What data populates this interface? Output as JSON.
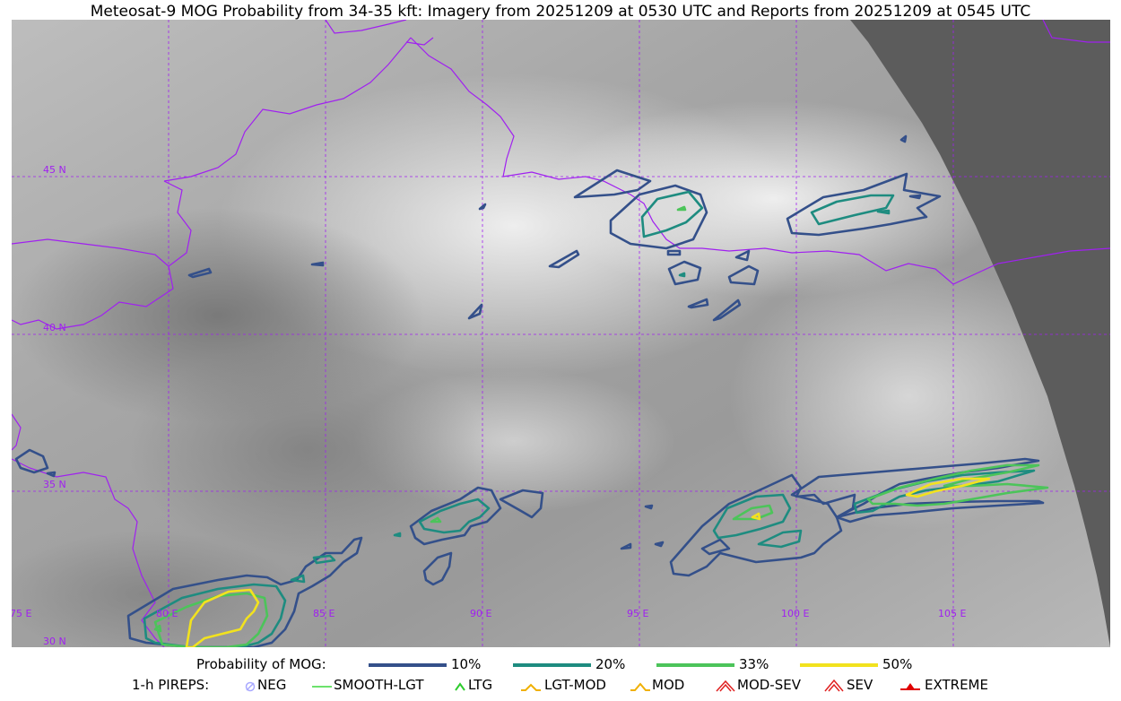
{
  "title": "Meteosat-9 MOG Probability from 34-35 kft: Imagery from 20251209 at 0530 UTC and Reports from 20251209 at 0545 UTC",
  "map": {
    "lat_labels": [
      "45 N",
      "40 N",
      "35 N",
      "30 N"
    ],
    "lon_labels": [
      "75 E",
      "80 E",
      "85 E",
      "90 E",
      "95 E",
      "100 E",
      "105 E"
    ],
    "grid_color": "#a020f0",
    "border_color": "#a020f0",
    "no_data_color": "#5c5c5c"
  },
  "legend_mog": {
    "label": "Probability of MOG:",
    "items": [
      {
        "label": "10%",
        "color": "#34508a"
      },
      {
        "label": "20%",
        "color": "#1e8c80"
      },
      {
        "label": "33%",
        "color": "#4cc45a"
      },
      {
        "label": "50%",
        "color": "#f2e21e"
      }
    ]
  },
  "legend_pirep": {
    "label": "1-h PIREPS:",
    "items": [
      {
        "label": "NEG",
        "icon": "neg-circle-icon",
        "color": "#a9a9ff"
      },
      {
        "label": "SMOOTH-LGT",
        "icon": "smooth-lgt-line-icon",
        "color": "#3cd93c"
      },
      {
        "label": "LTG",
        "icon": "ltg-caret-icon",
        "color": "#2ecc2e"
      },
      {
        "label": "LGT-MOD",
        "icon": "lgt-mod-caret-icon",
        "color": "#f0b000"
      },
      {
        "label": "MOD",
        "icon": "mod-caret-icon",
        "color": "#f0b000"
      },
      {
        "label": "MOD-SEV",
        "icon": "mod-sev-caret-icon",
        "color": "#e02020"
      },
      {
        "label": "SEV",
        "icon": "sev-caret-icon",
        "color": "#e02020"
      },
      {
        "label": "EXTREME",
        "icon": "extreme-caret-icon",
        "color": "#e00000"
      }
    ]
  }
}
